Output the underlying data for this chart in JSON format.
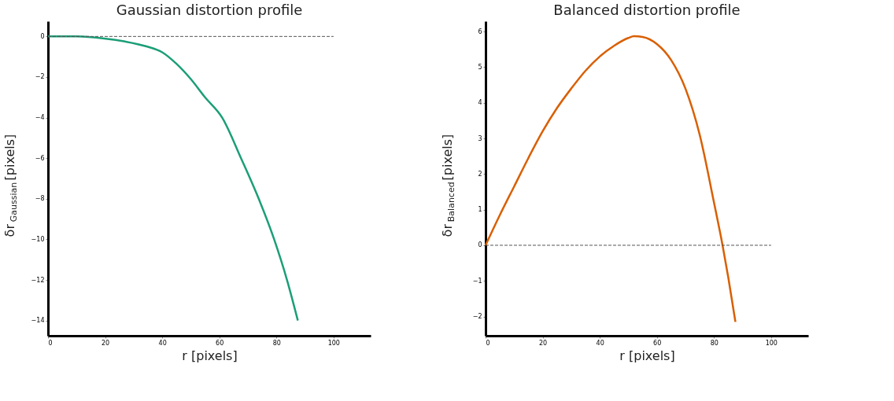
{
  "chart_data": [
    {
      "type": "line",
      "title": "Gaussian distortion profile",
      "xlabel": "r [pixels]",
      "ylabel": "δr$_{Gaussian}$[pixels]",
      "xlim": [
        0,
        113
      ],
      "xticks": [
        0,
        20,
        40,
        60,
        80,
        100
      ],
      "ylim": [
        -14.75,
        0.75
      ],
      "yticks": [
        -14,
        -12,
        -10,
        -8,
        -6,
        -4,
        -2,
        0
      ],
      "grid": false,
      "line_style": "solid",
      "marker": "none",
      "series": [
        {
          "color": "#1b9e77",
          "x": [
            0,
            10,
            19.7,
            27,
            34.5,
            40,
            45,
            50,
            55,
            61,
            67.6,
            73.8,
            79.2,
            83.7,
            87.5
          ],
          "values": [
            0,
            0,
            -0.1,
            -0.25,
            -0.49,
            -0.78,
            -1.35,
            -2.1,
            -3,
            -4,
            -6,
            -8,
            -10,
            -12,
            -14
          ]
        }
      ],
      "ref_lines": [
        {
          "axis": "y",
          "value": 0,
          "label": null,
          "color": "#555555",
          "line_style": "dashed"
        }
      ]
    },
    {
      "type": "line",
      "title": "Balanced distortion profile",
      "xlabel": "r [pixels]",
      "ylabel": "δr$_{Balanced}$[pixels]",
      "xlim": [
        0,
        113
      ],
      "xticks": [
        0,
        20,
        40,
        60,
        80,
        100
      ],
      "ylim": [
        -2.54,
        6.29
      ],
      "yticks": [
        -2,
        -1,
        0,
        1,
        2,
        3,
        4,
        5,
        6
      ],
      "grid": false,
      "line_style": "solid",
      "marker": "none",
      "series": [
        {
          "color": "#d95f02",
          "x": [
            0,
            5,
            10,
            15,
            20,
            25,
            30,
            35,
            40,
            45,
            50,
            52,
            55,
            60,
            65,
            70,
            75,
            80,
            83,
            85,
            87.5
          ],
          "values": [
            0,
            0.85,
            1.65,
            2.45,
            3.2,
            3.85,
            4.4,
            4.9,
            5.3,
            5.6,
            5.82,
            5.87,
            5.85,
            5.65,
            5.2,
            4.4,
            3.1,
            1.2,
            0,
            -0.9,
            -2.15
          ]
        }
      ],
      "ref_lines": [
        {
          "axis": "y",
          "value": 0,
          "label": null,
          "color": "#555555",
          "line_style": "dashed"
        }
      ]
    }
  ]
}
